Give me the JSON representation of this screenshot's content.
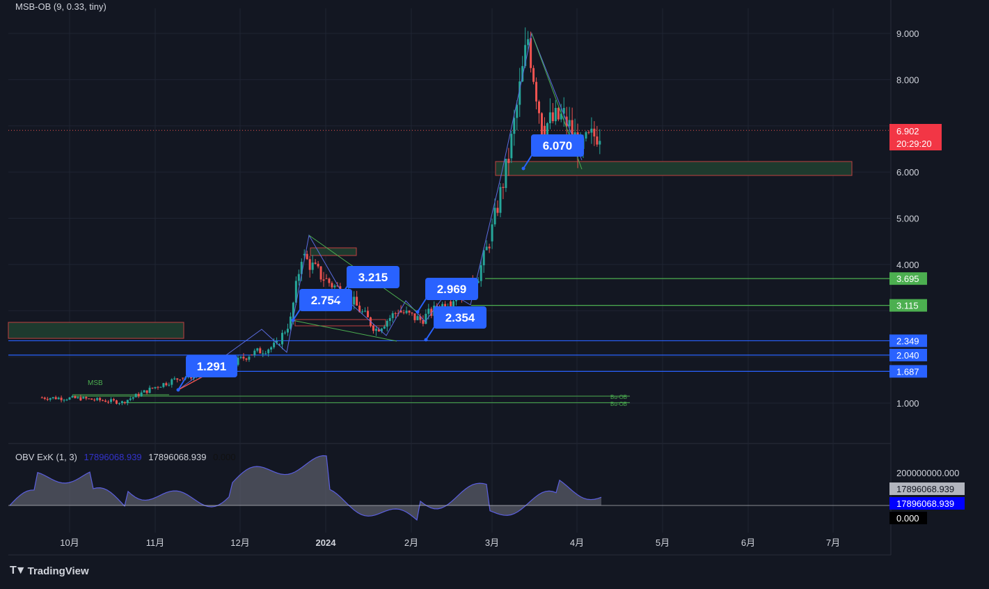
{
  "indicator_main": {
    "name": "MSB-OB",
    "params": "(9, 0.33, tiny)"
  },
  "indicator_obv": {
    "name": "OBV ExK",
    "params": "(1, 3)",
    "value1": "17896068.939",
    "value2": "17896068.939",
    "value3": "0.000"
  },
  "footer": {
    "brand": "TradingView"
  },
  "colors": {
    "bg": "#131722",
    "up": "#26a69a",
    "down": "#ef5350",
    "blue": "#2962ff",
    "green": "#4caf50",
    "grid": "#1f2433"
  },
  "chart_data": [
    {
      "type": "candlestick",
      "title": "",
      "x_ticks": [
        "10月",
        "11月",
        "12月",
        "2024",
        "2月",
        "3月",
        "4月",
        "5月",
        "6月",
        "7月"
      ],
      "y_ticks": [
        "1.000",
        "4.000",
        "5.000",
        "6.000",
        "8.000",
        "9.000"
      ],
      "ylim": [
        0.2,
        9.6
      ],
      "last_price": {
        "value": "6.902",
        "countdown": "20:29:20"
      },
      "price_labels": [
        {
          "value": "3.695",
          "color": "green"
        },
        {
          "value": "3.115",
          "color": "green"
        },
        {
          "value": "2.349",
          "color": "blue"
        },
        {
          "value": "2.040",
          "color": "blue"
        },
        {
          "value": "1.687",
          "color": "blue"
        }
      ],
      "callouts": [
        "1.291",
        "2.754",
        "3.215",
        "2.969",
        "2.354",
        "6.070"
      ],
      "annotations": [
        "MSB",
        "Bu-OB",
        "Bu-OB"
      ],
      "series_points": [
        [
          "2023-09-20",
          1.12
        ],
        [
          "2023-10-05",
          1.1
        ],
        [
          "2023-10-20",
          1.02
        ],
        [
          "2023-11-01",
          1.35
        ],
        [
          "2023-11-10",
          1.55
        ],
        [
          "2023-11-25",
          1.7
        ],
        [
          "2023-12-05",
          2.05
        ],
        [
          "2023-12-15",
          2.25
        ],
        [
          "2023-12-20",
          2.8
        ],
        [
          "2023-12-24",
          4.2
        ],
        [
          "2024-01-01",
          3.7
        ],
        [
          "2024-01-10",
          3.3
        ],
        [
          "2024-01-20",
          2.6
        ],
        [
          "2024-01-28",
          3.0
        ],
        [
          "2024-02-05",
          2.8
        ],
        [
          "2024-02-15",
          3.2
        ],
        [
          "2024-02-25",
          3.6
        ],
        [
          "2024-03-01",
          4.5
        ],
        [
          "2024-03-08",
          6.3
        ],
        [
          "2024-03-15",
          8.9
        ],
        [
          "2024-03-20",
          7.0
        ],
        [
          "2024-03-28",
          7.2
        ],
        [
          "2024-04-03",
          6.5
        ],
        [
          "2024-04-10",
          6.902
        ]
      ]
    },
    {
      "type": "area",
      "title": "OBV ExK",
      "y_ticks": [
        "200000000.000"
      ],
      "last_values": [
        "17896068.939",
        "17896068.939",
        "0.000"
      ]
    }
  ]
}
